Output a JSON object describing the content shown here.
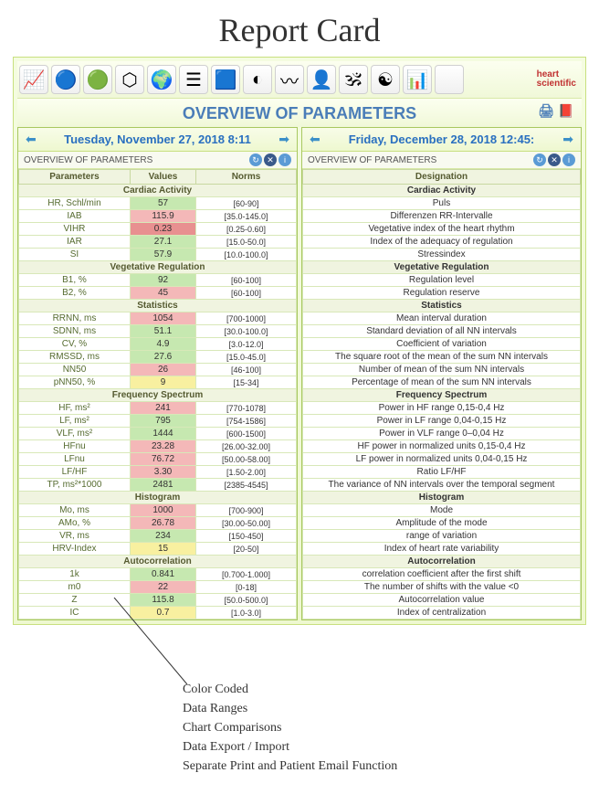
{
  "page_title": "Report Card",
  "overview_title": "OVERVIEW OF PARAMETERS",
  "logo_text": "heart\nscientific",
  "toolbar_icons": [
    {
      "name": "ecg-icon",
      "glyph": "📈"
    },
    {
      "name": "dots-icon",
      "glyph": "🔵"
    },
    {
      "name": "circle-icon",
      "glyph": "🟢"
    },
    {
      "name": "hex-icon",
      "glyph": "⬡"
    },
    {
      "name": "map-icon",
      "glyph": "🌍"
    },
    {
      "name": "bars-icon",
      "glyph": "☰"
    },
    {
      "name": "square-icon",
      "glyph": "🟦"
    },
    {
      "name": "pie-icon",
      "glyph": "◐"
    },
    {
      "name": "wave-icon",
      "glyph": "〰"
    },
    {
      "name": "head-icon",
      "glyph": "👤"
    },
    {
      "name": "om-icon",
      "glyph": "🕉"
    },
    {
      "name": "yinyang-icon",
      "glyph": "☯"
    },
    {
      "name": "chart-icon",
      "glyph": "📊"
    },
    {
      "name": "blank-icon",
      "glyph": ""
    }
  ],
  "overview_side_icons": [
    {
      "name": "print-icon",
      "glyph": "🖨"
    },
    {
      "name": "book-icon",
      "glyph": "📕"
    }
  ],
  "left_date": "Tuesday, November 27, 2018 8:11",
  "right_date": "Friday, December 28, 2018 12:45:",
  "sub_header_label": "OVERVIEW OF PARAMETERS",
  "columns_left": [
    "Parameters",
    "Values",
    "Norms"
  ],
  "columns_right": [
    "Designation"
  ],
  "colors": {
    "green": "#c6e8b0",
    "pink": "#f4b8b8",
    "red": "#e89090",
    "yellow": "#f8f0a0"
  },
  "sections": [
    {
      "title": "Cardiac Activity",
      "rows": [
        {
          "p": "HR, Schl/min",
          "v": "57",
          "c": "green",
          "n": "[60-90]",
          "d": "Puls"
        },
        {
          "p": "IAB",
          "v": "115.9",
          "c": "pink",
          "n": "[35.0-145.0]",
          "d": "Differenzen RR-Intervalle"
        },
        {
          "p": "VIHR",
          "v": "0.23",
          "c": "red",
          "n": "[0.25-0.60]",
          "d": "Vegetative index of the heart rhythm"
        },
        {
          "p": "IAR",
          "v": "27.1",
          "c": "green",
          "n": "[15.0-50.0]",
          "d": "Index of the adequacy of regulation"
        },
        {
          "p": "SI",
          "v": "57.9",
          "c": "green",
          "n": "[10.0-100.0]",
          "d": "Stressindex"
        }
      ]
    },
    {
      "title": "Vegetative Regulation",
      "rows": [
        {
          "p": "B1, %",
          "v": "92",
          "c": "green",
          "n": "[60-100]",
          "d": "Regulation level"
        },
        {
          "p": "B2, %",
          "v": "45",
          "c": "pink",
          "n": "[60-100]",
          "d": "Regulation reserve"
        }
      ]
    },
    {
      "title": "Statistics",
      "rows": [
        {
          "p": "RRNN, ms",
          "v": "1054",
          "c": "pink",
          "n": "[700-1000]",
          "d": "Mean interval duration"
        },
        {
          "p": "SDNN, ms",
          "v": "51.1",
          "c": "green",
          "n": "[30.0-100.0]",
          "d": "Standard deviation of all NN intervals"
        },
        {
          "p": "CV, %",
          "v": "4.9",
          "c": "green",
          "n": "[3.0-12.0]",
          "d": "Coefficient of variation"
        },
        {
          "p": "RMSSD, ms",
          "v": "27.6",
          "c": "green",
          "n": "[15.0-45.0]",
          "d": "The square root of the mean of the sum NN intervals"
        },
        {
          "p": "NN50",
          "v": "26",
          "c": "pink",
          "n": "[46-100]",
          "d": "Number of mean of the sum NN intervals"
        },
        {
          "p": "pNN50, %",
          "v": "9",
          "c": "yellow",
          "n": "[15-34]",
          "d": "Percentage of mean of the sum NN intervals"
        }
      ]
    },
    {
      "title": "Frequency Spectrum",
      "rows": [
        {
          "p": "HF, ms²",
          "v": "241",
          "c": "pink",
          "n": "[770-1078]",
          "d": "Power in HF range 0,15-0,4 Hz"
        },
        {
          "p": "LF, ms²",
          "v": "795",
          "c": "green",
          "n": "[754-1586]",
          "d": "Power in LF range 0,04-0,15 Hz"
        },
        {
          "p": "VLF, ms²",
          "v": "1444",
          "c": "green",
          "n": "[600-1500]",
          "d": "Power in VLF range 0–0,04 Hz"
        },
        {
          "p": "HFnu",
          "v": "23.28",
          "c": "pink",
          "n": "[26.00-32.00]",
          "d": "HF power in normalized units 0,15-0,4 Hz"
        },
        {
          "p": "LFnu",
          "v": "76.72",
          "c": "pink",
          "n": "[50.00-58.00]",
          "d": "LF power in normalized units 0,04-0,15 Hz"
        },
        {
          "p": "LF/HF",
          "v": "3.30",
          "c": "pink",
          "n": "[1.50-2.00]",
          "d": "Ratio LF/HF"
        },
        {
          "p": "TP, ms²*1000",
          "v": "2481",
          "c": "green",
          "n": "[2385-4545]",
          "d": "The variance of NN intervals over the temporal segment"
        }
      ]
    },
    {
      "title": "Histogram",
      "rows": [
        {
          "p": "Mo, ms",
          "v": "1000",
          "c": "pink",
          "n": "[700-900]",
          "d": "Mode"
        },
        {
          "p": "AMo, %",
          "v": "26.78",
          "c": "pink",
          "n": "[30.00-50.00]",
          "d": "Amplitude of the mode"
        },
        {
          "p": "VR, ms",
          "v": "234",
          "c": "green",
          "n": "[150-450]",
          "d": "range of variation"
        },
        {
          "p": "HRV-Index",
          "v": "15",
          "c": "yellow",
          "n": "[20-50]",
          "d": "Index of heart rate variability"
        }
      ]
    },
    {
      "title": "Autocorrelation",
      "rows": [
        {
          "p": "1k",
          "v": "0.841",
          "c": "green",
          "n": "[0.700-1.000]",
          "d": "correlation coefficient after the first shift"
        },
        {
          "p": "m0",
          "v": "22",
          "c": "pink",
          "n": "[0-18]",
          "d": "The number of shifts with the value <0"
        },
        {
          "p": "Z",
          "v": "115.8",
          "c": "green",
          "n": "[50.0-500.0]",
          "d": "Autocorrelation value"
        },
        {
          "p": "IC",
          "v": "0.7",
          "c": "yellow",
          "n": "[1.0-3.0]",
          "d": "Index of centralization"
        }
      ]
    }
  ],
  "features": [
    "Color Coded",
    "Data Ranges",
    "Chart Comparisons",
    "Data Export / Import",
    "Separate Print and Patient Email Function"
  ]
}
